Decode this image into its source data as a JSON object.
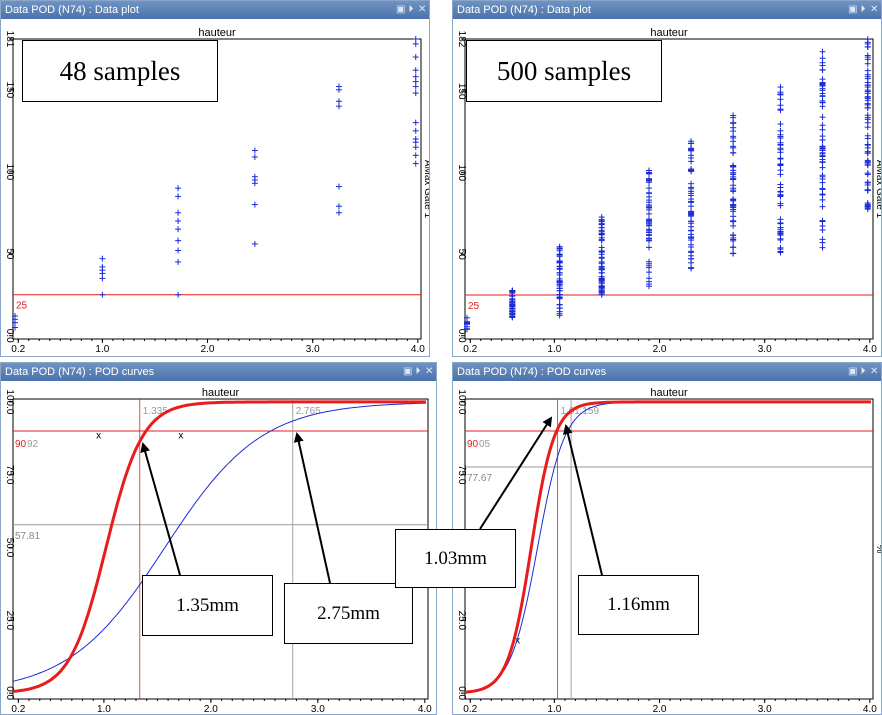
{
  "colors": {
    "blue": "#1a2bd6",
    "red": "#e81c1c",
    "grid": "#9a9a9a",
    "titlebar": "#5a80b8"
  },
  "panels": [
    {
      "id": "tl",
      "kind": "data",
      "title": "Data POD (N74) : Data plot",
      "xlabel": "hauteur",
      "ylabel": "AMax Gate 1",
      "xlim": [
        0.15,
        4.03
      ],
      "ylim": [
        -2,
        181
      ],
      "xticks": [
        {
          "v": 0.2,
          "t": "0.2"
        },
        {
          "v": 1.0,
          "t": "1.0"
        },
        {
          "v": 2.0,
          "t": "2.0"
        },
        {
          "v": 3.0,
          "t": "3.0"
        },
        {
          "v": 4.0,
          "t": "4.0"
        }
      ],
      "yticks": [
        {
          "v": 0,
          "t": "0.0"
        },
        {
          "v": 50,
          "t": "50"
        },
        {
          "v": 100,
          "t": "100"
        },
        {
          "v": 150,
          "t": "150"
        },
        {
          "v": 181,
          "t": "181"
        }
      ],
      "threshold": {
        "y": 25,
        "label": "25"
      },
      "annotation": "48 samples"
    },
    {
      "id": "tr",
      "kind": "data",
      "title": "Data POD (N74) : Data plot",
      "xlabel": "hauteur",
      "ylabel": "AMax Gate 1",
      "xlim": [
        0.15,
        4.03
      ],
      "ylim": [
        -2,
        182
      ],
      "xticks": [
        {
          "v": 0.2,
          "t": "0.2"
        },
        {
          "v": 1.0,
          "t": "1.0"
        },
        {
          "v": 2.0,
          "t": "2.0"
        },
        {
          "v": 3.0,
          "t": "3.0"
        },
        {
          "v": 4.0,
          "t": "4.0"
        }
      ],
      "yticks": [
        {
          "v": 0,
          "t": "0.0"
        },
        {
          "v": 50,
          "t": "50"
        },
        {
          "v": 100,
          "t": "100"
        },
        {
          "v": 150,
          "t": "150"
        },
        {
          "v": 182,
          "t": "182"
        }
      ],
      "threshold": {
        "y": 25,
        "label": "25"
      },
      "annotation": "500 samples"
    },
    {
      "id": "bl",
      "kind": "pod",
      "title": "Data POD (N74) : POD curves",
      "xlabel": "hauteur",
      "ylabel": "",
      "xlim": [
        0.15,
        4.03
      ],
      "ylim": [
        -2,
        101
      ],
      "xticks": [
        {
          "v": 0.2,
          "t": "0.2"
        },
        {
          "v": 1.0,
          "t": "1.0"
        },
        {
          "v": 2.0,
          "t": "2.0"
        },
        {
          "v": 3.0,
          "t": "3.0"
        },
        {
          "v": 4.0,
          "t": "4.0"
        }
      ],
      "yticks": [
        {
          "v": 0,
          "t": "0.0"
        },
        {
          "v": 25,
          "t": "25.0"
        },
        {
          "v": 50,
          "t": "50.0"
        },
        {
          "v": 75,
          "t": "75.0"
        },
        {
          "v": 100,
          "t": "100.0"
        }
      ],
      "hline_red": {
        "y": 90,
        "label": "90"
      },
      "hline_extra_label": "92",
      "hline_grey": {
        "y": 57.81,
        "label": "57.81"
      },
      "vlines": [
        {
          "x": 1.335,
          "label": "1.335",
          "color": "red"
        },
        {
          "x": 2.765,
          "label": "2.765",
          "color": "grey"
        }
      ],
      "crosses": [
        {
          "x": 0.95,
          "y": 87.5,
          "t": "x"
        },
        {
          "x": 1.72,
          "y": 87.5,
          "t": "x"
        }
      ],
      "red_curve": {
        "x0": 1.02,
        "s": 0.17
      },
      "blue_curve": {
        "x0": 1.57,
        "s": 0.45
      },
      "annotations": [
        {
          "text": "1.35mm"
        },
        {
          "text": "2.75mm"
        }
      ]
    },
    {
      "id": "br",
      "kind": "pod",
      "title": "Data POD (N74) : POD curves",
      "xlabel": "hauteur",
      "ylabel": "%",
      "xlim": [
        0.15,
        4.03
      ],
      "ylim": [
        -2,
        101
      ],
      "xticks": [
        {
          "v": 0.2,
          "t": "0.2"
        },
        {
          "v": 1.0,
          "t": "1.0"
        },
        {
          "v": 2.0,
          "t": "2.0"
        },
        {
          "v": 3.0,
          "t": "3.0"
        },
        {
          "v": 4.0,
          "t": "4.0"
        }
      ],
      "yticks": [
        {
          "v": 0,
          "t": "0.0"
        },
        {
          "v": 25,
          "t": "25.0"
        },
        {
          "v": 50,
          "t": "50.0"
        },
        {
          "v": 75,
          "t": "75.0"
        },
        {
          "v": 100,
          "t": "100.0"
        }
      ],
      "hline_red": {
        "y": 90,
        "label": "90"
      },
      "hline_extra_label": "05",
      "hline_grey": {
        "y": 77.67,
        "label": "77.67"
      },
      "vlines": [
        {
          "x": 1.03,
          "label": "1.0",
          "color": "red"
        },
        {
          "x": 1.159,
          "label": "1.159",
          "color": "grey"
        }
      ],
      "crosses": [
        {
          "x": 0.65,
          "y": 17,
          "t": "x"
        }
      ],
      "red_curve": {
        "x0": 0.78,
        "s": 0.11
      },
      "blue_curve": {
        "x0": 0.84,
        "s": 0.13
      },
      "annotations": [
        {
          "text": "1.03mm"
        },
        {
          "text": "1.16mm"
        }
      ]
    }
  ],
  "chart_data": [
    {
      "type": "scatter",
      "title": "",
      "xlabel": "hauteur",
      "ylabel": "AMax Gate 1",
      "xlim": [
        0.2,
        4.0
      ],
      "ylim": [
        0,
        181
      ],
      "threshold": 25,
      "points": [
        [
          0.16,
          5
        ],
        [
          0.16,
          8
        ],
        [
          0.16,
          10
        ],
        [
          0.16,
          12
        ],
        [
          1.0,
          35
        ],
        [
          1.0,
          38
        ],
        [
          1.0,
          40
        ],
        [
          1.0,
          42
        ],
        [
          1.0,
          47
        ],
        [
          1.0,
          25
        ],
        [
          1.72,
          25
        ],
        [
          1.72,
          45
        ],
        [
          1.72,
          52
        ],
        [
          1.72,
          58
        ],
        [
          1.72,
          65
        ],
        [
          1.72,
          70
        ],
        [
          1.72,
          75
        ],
        [
          1.72,
          85
        ],
        [
          1.72,
          90
        ],
        [
          2.45,
          56
        ],
        [
          2.45,
          80
        ],
        [
          2.45,
          93
        ],
        [
          2.45,
          95
        ],
        [
          2.45,
          97
        ],
        [
          2.45,
          109
        ],
        [
          2.45,
          113
        ],
        [
          3.25,
          75
        ],
        [
          3.25,
          79
        ],
        [
          3.25,
          91
        ],
        [
          3.25,
          140
        ],
        [
          3.25,
          143
        ],
        [
          3.25,
          150
        ],
        [
          3.25,
          152
        ],
        [
          3.98,
          105
        ],
        [
          3.98,
          110
        ],
        [
          3.98,
          115
        ],
        [
          3.98,
          118
        ],
        [
          3.98,
          148
        ],
        [
          3.98,
          152
        ],
        [
          3.98,
          155
        ],
        [
          3.98,
          158
        ],
        [
          3.98,
          162
        ],
        [
          3.98,
          170
        ],
        [
          3.98,
          178
        ],
        [
          3.98,
          181
        ],
        [
          3.98,
          120
        ],
        [
          3.98,
          125
        ],
        [
          3.98,
          130
        ]
      ]
    },
    {
      "type": "scatter",
      "title": "",
      "xlabel": "hauteur",
      "ylabel": "AMax Gate 1",
      "xlim": [
        0.2,
        4.0
      ],
      "ylim": [
        0,
        182
      ],
      "threshold": 25,
      "columns": [
        {
          "x": 0.16,
          "min": 3,
          "max": 12,
          "n": 10
        },
        {
          "x": 0.6,
          "min": 10,
          "max": 28,
          "n": 40
        },
        {
          "x": 1.05,
          "min": 12,
          "max": 55,
          "n": 50
        },
        {
          "x": 1.45,
          "min": 25,
          "max": 76,
          "n": 55
        },
        {
          "x": 1.9,
          "min": 28,
          "max": 102,
          "n": 55
        },
        {
          "x": 2.3,
          "min": 38,
          "max": 122,
          "n": 55
        },
        {
          "x": 2.7,
          "min": 44,
          "max": 137,
          "n": 55
        },
        {
          "x": 3.15,
          "min": 51,
          "max": 153,
          "n": 55
        },
        {
          "x": 3.55,
          "min": 54,
          "max": 178,
          "n": 60
        },
        {
          "x": 3.98,
          "min": 77,
          "max": 182,
          "n": 65
        }
      ]
    },
    {
      "type": "line",
      "title": "",
      "xlabel": "hauteur",
      "ylabel": "",
      "xlim": [
        0.2,
        4.0
      ],
      "ylim": [
        0,
        100
      ],
      "series": [
        {
          "points": [
            [
              0.2,
              8
            ],
            [
              0.6,
              30
            ],
            [
              1.0,
              62
            ],
            [
              1.335,
              90
            ],
            [
              1.6,
              98
            ],
            [
              2.0,
              99.8
            ],
            [
              4.0,
              100
            ]
          ]
        },
        {
          "points": [
            [
              0.2,
              1
            ],
            [
              0.6,
              8
            ],
            [
              1.0,
              22
            ],
            [
              1.335,
              57.81
            ],
            [
              2.0,
              76
            ],
            [
              2.765,
              90
            ],
            [
              3.5,
              96
            ],
            [
              4.0,
              97.5
            ]
          ]
        }
      ],
      "annotations": [
        "1.335",
        "2.765",
        "57.81",
        "90",
        "92"
      ]
    },
    {
      "type": "line",
      "title": "",
      "xlabel": "hauteur",
      "ylabel": "%",
      "xlim": [
        0.2,
        4.0
      ],
      "ylim": [
        0,
        100
      ],
      "series": [
        {
          "points": [
            [
              0.2,
              1
            ],
            [
              0.5,
              5
            ],
            [
              0.7,
              32
            ],
            [
              0.85,
              70
            ],
            [
              1.03,
              92
            ],
            [
              1.2,
              99.5
            ],
            [
              4.0,
              100
            ]
          ]
        },
        {
          "points": [
            [
              0.2,
              0
            ],
            [
              0.5,
              3
            ],
            [
              0.7,
              22
            ],
            [
              0.9,
              60
            ],
            [
              1.159,
              92
            ],
            [
              1.4,
              99
            ],
            [
              4.0,
              99.7
            ]
          ]
        }
      ],
      "annotations": [
        "1.0",
        "1.159",
        "77.67",
        "90",
        "05"
      ]
    }
  ]
}
